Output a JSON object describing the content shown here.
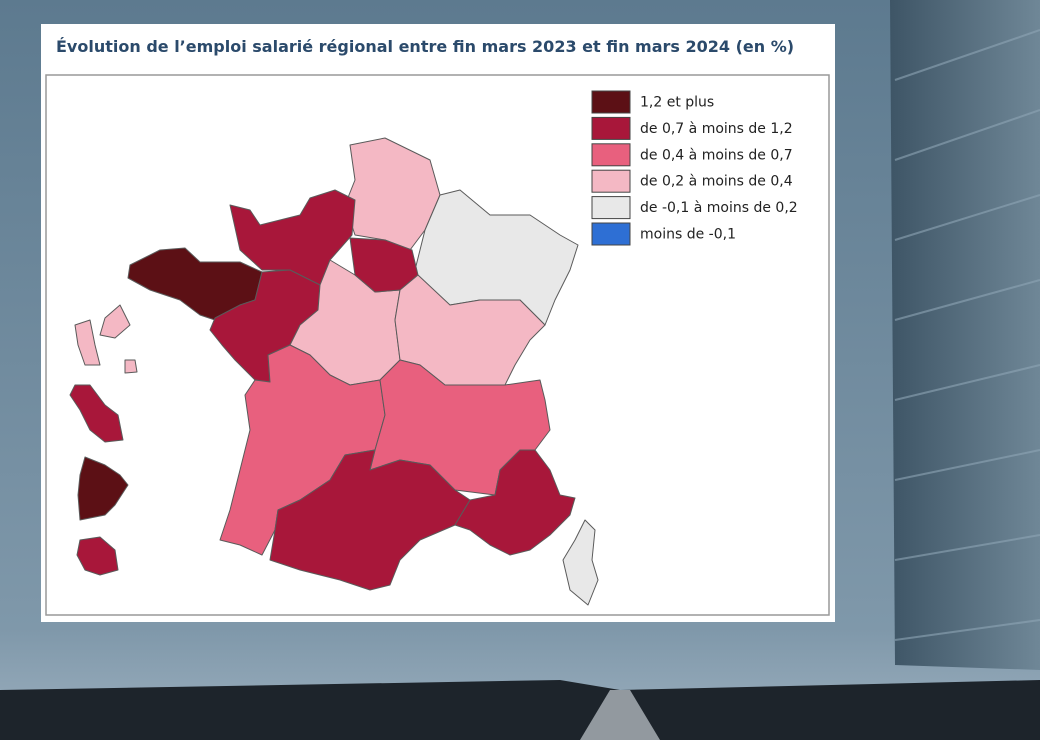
{
  "title": "Évolution de l’emploi salarié régional entre fin mars 2023 et fin mars 2024 (en %)",
  "legend": [
    {
      "label": "1,2 et plus",
      "color": "#5c1015"
    },
    {
      "label": "de 0,7 à moins de 1,2",
      "color": "#a8173a"
    },
    {
      "label": "de 0,4 à moins de 0,7",
      "color": "#e8607e"
    },
    {
      "label": "de 0,2 à moins de 0,4",
      "color": "#f4b8c4"
    },
    {
      "label": "de -0,1 à moins de 0,2",
      "color": "#e8e8e8"
    },
    {
      "label": "moins de -0,1",
      "color": "#2e6fd4"
    }
  ]
}
